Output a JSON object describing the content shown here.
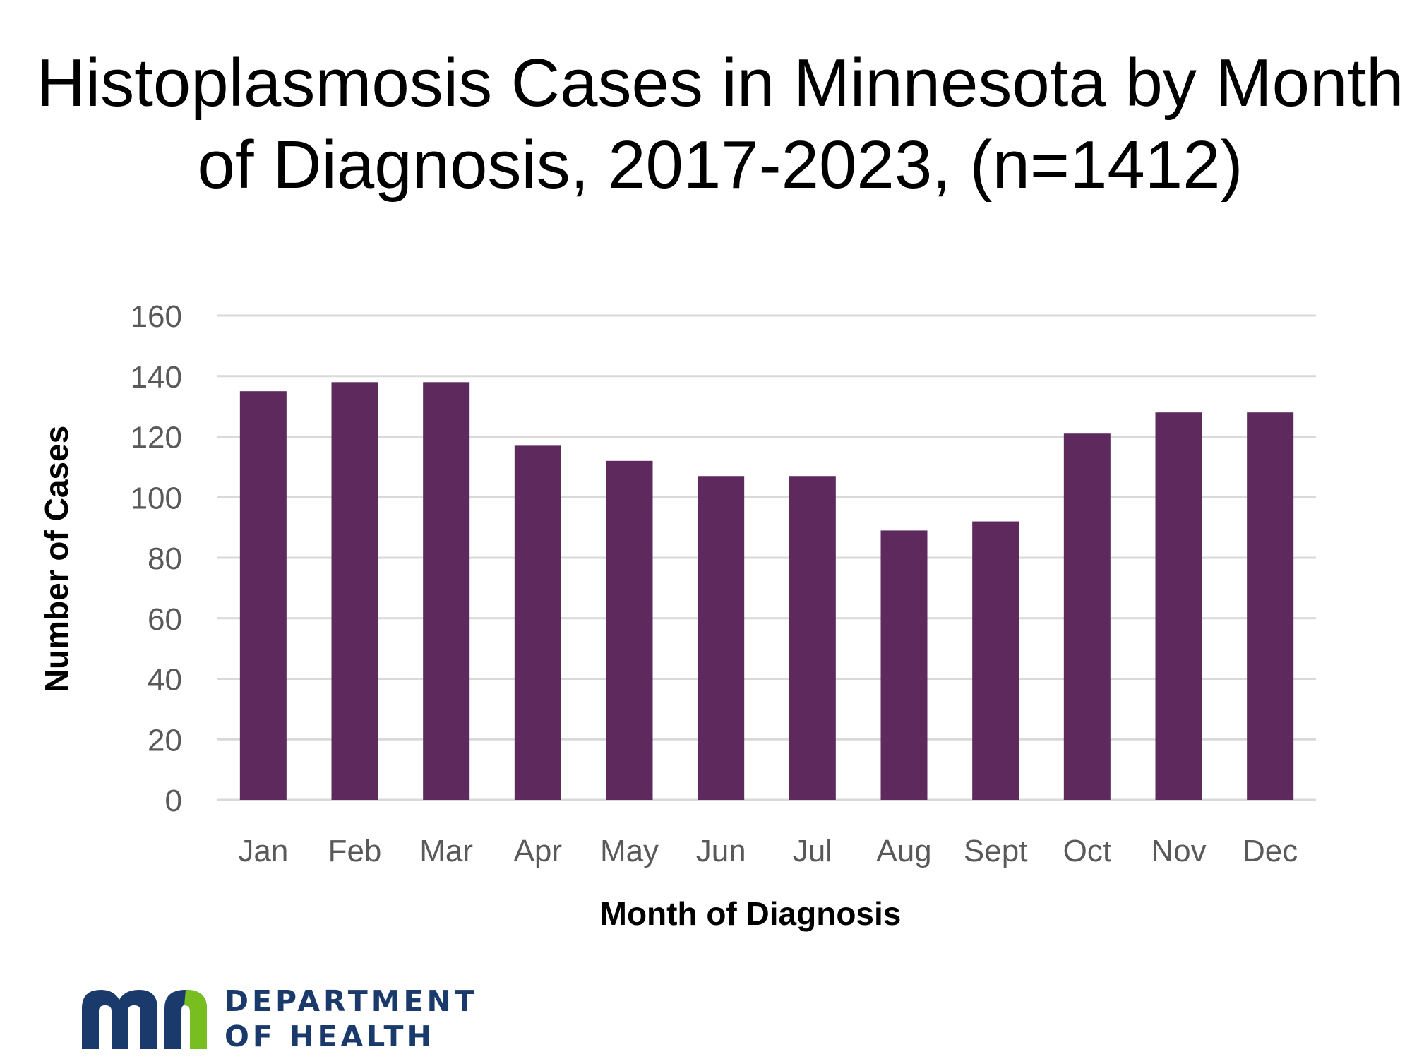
{
  "chart_data": {
    "type": "bar",
    "title": "Histoplasmosis Cases in Minnesota by Month of Diagnosis, 2017-2023, (n=1412)",
    "xlabel": "Month of Diagnosis",
    "ylabel": "Number of Cases",
    "categories": [
      "Jan",
      "Feb",
      "Mar",
      "Apr",
      "May",
      "Jun",
      "Jul",
      "Aug",
      "Sept",
      "Oct",
      "Nov",
      "Dec"
    ],
    "values": [
      135,
      138,
      138,
      117,
      112,
      107,
      107,
      89,
      92,
      121,
      128,
      128
    ],
    "ylim": [
      0,
      160
    ],
    "yticks": [
      0,
      20,
      40,
      60,
      80,
      100,
      120,
      140,
      160
    ],
    "grid": true,
    "bar_color": "#5e2a5e",
    "grid_color": "#d9d9d9",
    "tick_label_color": "#595959"
  },
  "logo": {
    "line1": "DEPARTMENT",
    "line2": "OF HEALTH",
    "dark_color": "#1a3a6b",
    "green_color": "#78be20"
  }
}
